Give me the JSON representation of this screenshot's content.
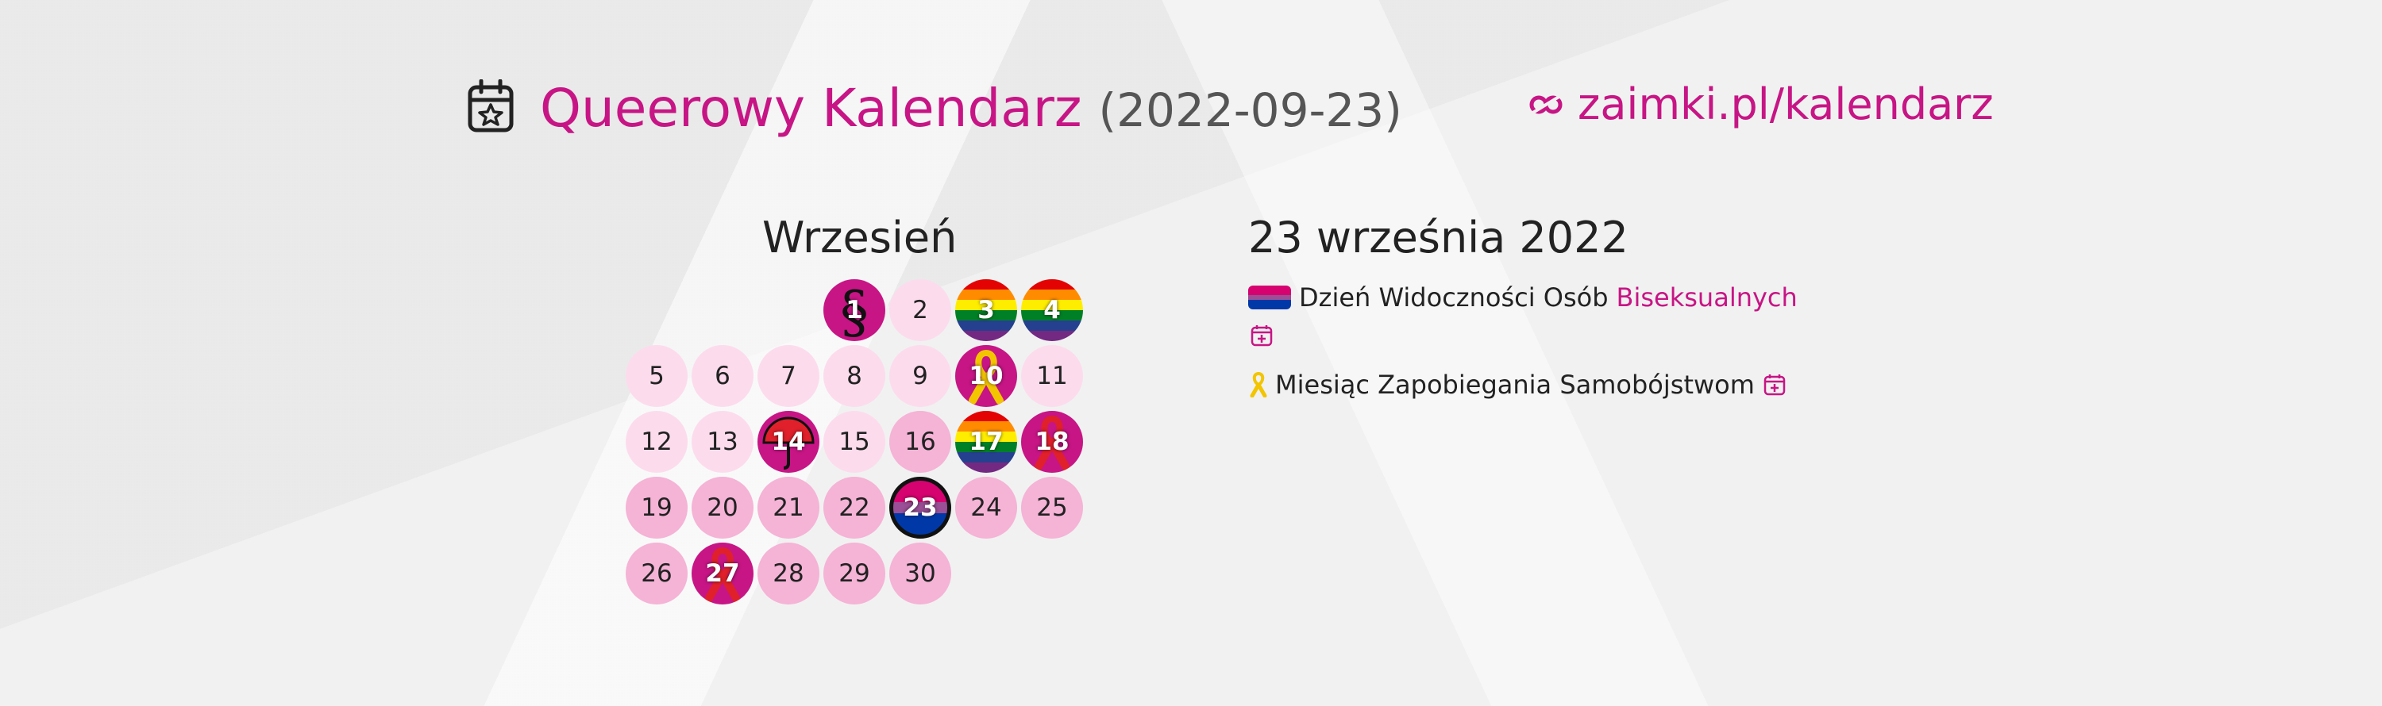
{
  "header": {
    "title": "Queerowy Kalendarz",
    "date": "(2022-09-23)",
    "icon": "calendar-star-icon",
    "site_link": "zaimki.pl/kalendarz",
    "site_icon": "zaimki-logo-icon"
  },
  "colors": {
    "accent": "#c71585",
    "light_day": "#fcdcec",
    "mid_day": "#f5b3d6"
  },
  "calendar": {
    "month": "Wrzesień",
    "days": [
      {
        "n": "1",
        "style": "event",
        "icon": "section-sign-icon"
      },
      {
        "n": "2",
        "style": "light"
      },
      {
        "n": "3",
        "style": "rainbow",
        "icon": "rainbow-flag-icon"
      },
      {
        "n": "4",
        "style": "rainbow",
        "icon": "rainbow-flag-icon"
      },
      {
        "n": "5",
        "style": "light"
      },
      {
        "n": "6",
        "style": "light"
      },
      {
        "n": "7",
        "style": "light"
      },
      {
        "n": "8",
        "style": "light"
      },
      {
        "n": "9",
        "style": "light"
      },
      {
        "n": "10",
        "style": "event",
        "icon": "yellow-ribbon-icon"
      },
      {
        "n": "11",
        "style": "light"
      },
      {
        "n": "12",
        "style": "light"
      },
      {
        "n": "13",
        "style": "light"
      },
      {
        "n": "14",
        "style": "event",
        "icon": "red-umbrella-icon"
      },
      {
        "n": "15",
        "style": "light"
      },
      {
        "n": "16",
        "style": "mid"
      },
      {
        "n": "17",
        "style": "rainbow",
        "icon": "rainbow-flag-icon"
      },
      {
        "n": "18",
        "style": "event",
        "icon": "red-ribbon-icon"
      },
      {
        "n": "19",
        "style": "mid"
      },
      {
        "n": "20",
        "style": "mid"
      },
      {
        "n": "21",
        "style": "mid"
      },
      {
        "n": "22",
        "style": "mid"
      },
      {
        "n": "23",
        "style": "bi",
        "icon": "bisexual-flag-icon"
      },
      {
        "n": "24",
        "style": "mid"
      },
      {
        "n": "25",
        "style": "mid"
      },
      {
        "n": "26",
        "style": "mid"
      },
      {
        "n": "27",
        "style": "event",
        "icon": "red-ribbon-icon"
      },
      {
        "n": "28",
        "style": "mid"
      },
      {
        "n": "29",
        "style": "mid"
      },
      {
        "n": "30",
        "style": "mid"
      }
    ]
  },
  "detail": {
    "date": "23 września 2022",
    "events": [
      {
        "text": "Dzień Widoczności Osób",
        "link": "Biseksualnych",
        "icon": "bisexual-flag-icon",
        "add_icon": "calendar-add-icon"
      },
      {
        "text": "Miesiąc Zapobiegania Samobójstwom",
        "icon": "yellow-ribbon-icon",
        "add_icon": "calendar-add-icon"
      }
    ]
  }
}
